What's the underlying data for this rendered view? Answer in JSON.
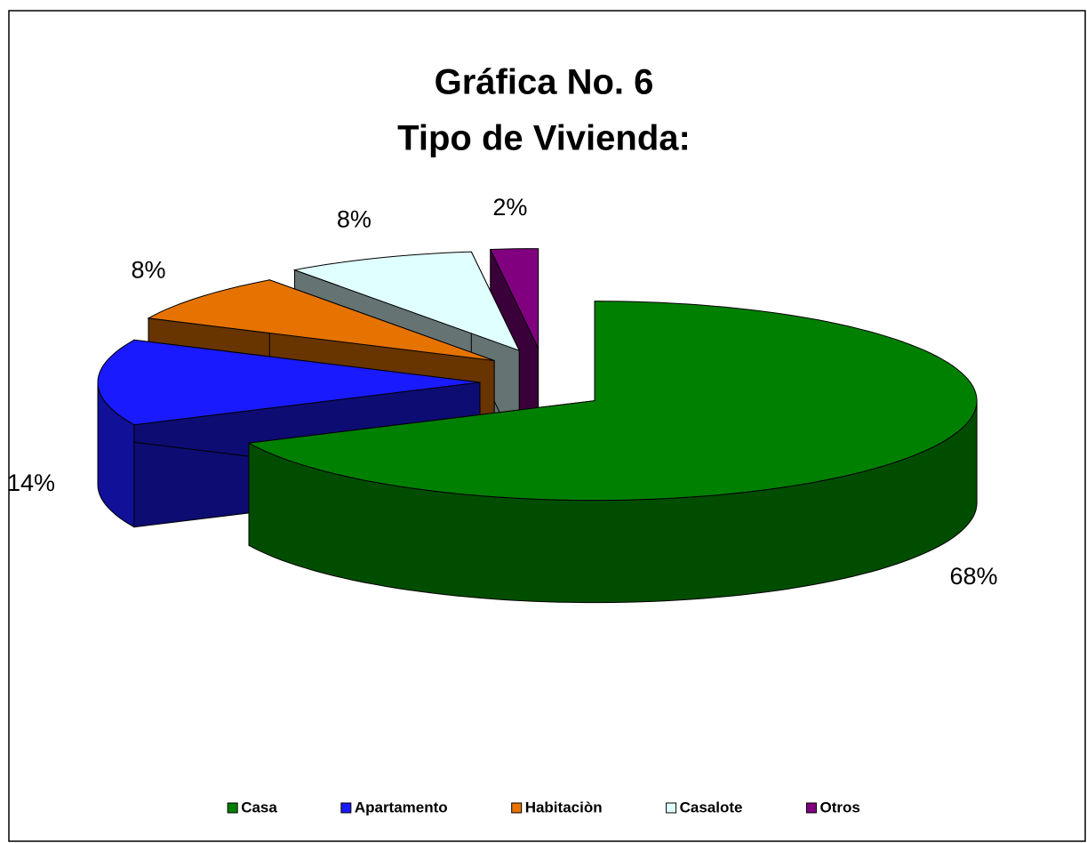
{
  "chart_data": {
    "type": "pie",
    "title": "Gráfica No. 6",
    "subtitle": "Tipo de Vivienda:",
    "categories": [
      "Casa",
      "Apartamento",
      "Habitaciòn",
      "Casalote",
      "Otros"
    ],
    "values": [
      68,
      14,
      8,
      8,
      2
    ],
    "value_labels": [
      "68%",
      "14%",
      "8%",
      "8%",
      "2%"
    ],
    "colors": [
      "#008000",
      "#1a1aff",
      "#e67300",
      "#e0ffff",
      "#800080"
    ],
    "legend": "bottom"
  }
}
